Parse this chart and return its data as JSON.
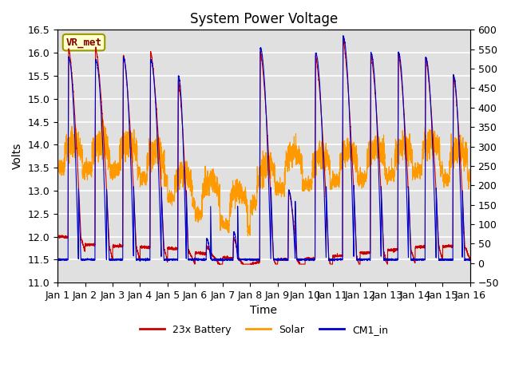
{
  "title": "System Power Voltage",
  "xlabel": "Time",
  "ylabel": "Volts",
  "ylim_left": [
    11.0,
    16.5
  ],
  "ylim_right": [
    -50,
    600
  ],
  "yticks_left": [
    11.0,
    11.5,
    12.0,
    12.5,
    13.0,
    13.5,
    14.0,
    14.5,
    15.0,
    15.5,
    16.0,
    16.5
  ],
  "yticks_right": [
    -50,
    0,
    50,
    100,
    150,
    200,
    250,
    300,
    350,
    400,
    450,
    500,
    550,
    600
  ],
  "xtick_labels": [
    "Jan 1",
    "Jan 2",
    "Jan 3",
    "Jan 4",
    "Jan 5",
    "Jan 6",
    "Jan 7",
    "Jan 8",
    "Jan 9",
    "Jan 10",
    "Jan 11",
    "Jan 12",
    "Jan 13",
    "Jan 14",
    "Jan 15",
    "Jan 16"
  ],
  "color_battery": "#cc0000",
  "color_solar": "#ff9900",
  "color_cm1": "#0000cc",
  "background_color": "#e0e0e0",
  "grid_color": "#ffffff",
  "annotation_text": "VR_met",
  "annotation_bg": "#ffffcc",
  "annotation_border": "#999900",
  "legend_labels": [
    "23x Battery",
    "Solar",
    "CM1_in"
  ],
  "title_fontsize": 12,
  "axis_fontsize": 10,
  "tick_fontsize": 9
}
